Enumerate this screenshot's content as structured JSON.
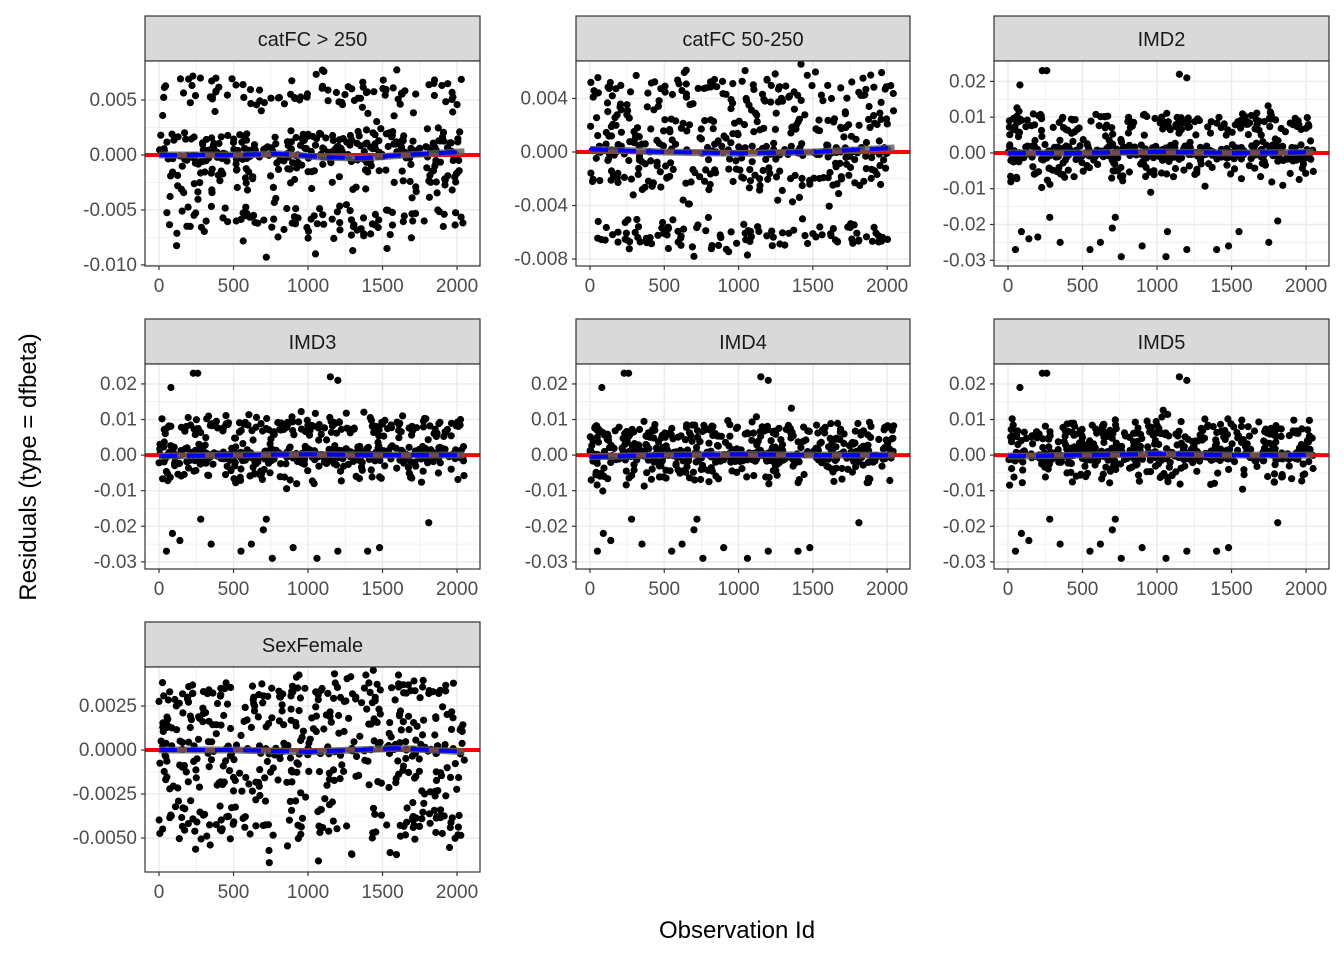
{
  "chart_data": {
    "type": "scatter",
    "xlabel": "Observation Id",
    "ylabel": "Residuals (type = dfbeta)",
    "xlim": [
      -94,
      2154
    ],
    "xticks": [
      0,
      500,
      1000,
      1500,
      2000
    ],
    "n_points_per_panel": 2050,
    "colors": {
      "points": "#000000",
      "reference_line": "#ff0000",
      "smooth_line": "#0000ff",
      "ribbon": "#595959",
      "strip": "#d9d9d9",
      "grid": "#ebebeb"
    },
    "panels": [
      {
        "title": "catFC > 250",
        "ylim": [
          -0.0101,
          0.00855
        ],
        "yticks": [
          0.005,
          0.0,
          -0.005,
          -0.01
        ],
        "ytick_labels": [
          "0.005",
          "0.000",
          "-0.005",
          "-0.010"
        ],
        "bands": [
          [
            0.0055,
            0.0012,
            0.2
          ],
          [
            0.0012,
            0.0007,
            0.22
          ],
          [
            0.0,
            0.0005,
            0.22
          ],
          [
            -0.002,
            0.0012,
            0.16
          ],
          [
            -0.006,
            0.0011,
            0.2
          ]
        ],
        "outliers": [
          [
            720,
            -0.0093
          ],
          [
            1050,
            -0.009
          ],
          [
            1530,
            -0.0085
          ],
          [
            1300,
            -0.0087
          ]
        ],
        "smooth": [
          [
            0,
            0.0
          ],
          [
            500,
            0.0
          ],
          [
            800,
            0.0001
          ],
          [
            1100,
            -0.0002
          ],
          [
            1350,
            -0.0003
          ],
          [
            1650,
            0.0
          ],
          [
            2050,
            0.0003
          ]
        ]
      },
      {
        "title": "catFC 50-250",
        "ylim": [
          -0.00852,
          0.0068
        ],
        "yticks": [
          0.004,
          0.0,
          -0.004,
          -0.008
        ],
        "ytick_labels": [
          "0.004",
          "0.000",
          "-0.004",
          "-0.008"
        ],
        "bands": [
          [
            0.0045,
            0.0011,
            0.22
          ],
          [
            0.0018,
            0.0008,
            0.2
          ],
          [
            0.0,
            0.0005,
            0.22
          ],
          [
            -0.002,
            0.0009,
            0.18
          ],
          [
            -0.0062,
            0.0007,
            0.18
          ]
        ],
        "outliers": [
          [
            700,
            -0.0078
          ],
          [
            1060,
            -0.0077
          ]
        ],
        "smooth": [
          [
            0,
            0.0002
          ],
          [
            500,
            0.0
          ],
          [
            1000,
            -0.0001
          ],
          [
            1500,
            0.0
          ],
          [
            2050,
            0.0003
          ]
        ]
      },
      {
        "title": "IMD2",
        "ylim": [
          -0.0316,
          0.0257
        ],
        "yticks": [
          0.02,
          0.01,
          0.0,
          -0.01,
          -0.02,
          -0.03
        ],
        "ytick_labels": [
          "0.02",
          "0.01",
          "0.00",
          "-0.01",
          "-0.02",
          "-0.03"
        ],
        "bands": [
          [
            0.008,
            0.0025,
            0.32
          ],
          [
            0.0,
            0.0018,
            0.56
          ],
          [
            -0.006,
            0.0025,
            0.12
          ]
        ],
        "outliers": [
          [
            50,
            -0.027
          ],
          [
            90,
            -0.022
          ],
          [
            140,
            -0.024
          ],
          [
            200,
            -0.0235
          ],
          [
            280,
            -0.018
          ],
          [
            350,
            -0.025
          ],
          [
            550,
            -0.027
          ],
          [
            620,
            -0.025
          ],
          [
            700,
            -0.021
          ],
          [
            720,
            -0.018
          ],
          [
            760,
            -0.029
          ],
          [
            900,
            -0.026
          ],
          [
            1060,
            -0.029
          ],
          [
            1070,
            -0.022
          ],
          [
            1200,
            -0.027
          ],
          [
            1400,
            -0.027
          ],
          [
            1480,
            -0.026
          ],
          [
            1550,
            -0.022
          ],
          [
            1750,
            -0.025
          ],
          [
            1810,
            -0.019
          ],
          [
            230,
            0.023
          ],
          [
            260,
            0.023
          ],
          [
            1150,
            0.022
          ],
          [
            1200,
            0.021
          ],
          [
            80,
            0.019
          ]
        ],
        "smooth": [
          [
            0,
            0.0
          ],
          [
            500,
            0.0
          ],
          [
            1000,
            0.0003
          ],
          [
            1500,
            0.0
          ],
          [
            2050,
            0.0002
          ]
        ]
      },
      {
        "title": "IMD3",
        "ylim": [
          -0.032,
          0.0256
        ],
        "yticks": [
          0.02,
          0.01,
          0.0,
          -0.01,
          -0.02,
          -0.03
        ],
        "ytick_labels": [
          "0.02",
          "0.01",
          "0.00",
          "-0.01",
          "-0.02",
          "-0.03"
        ],
        "bands": [
          [
            0.008,
            0.0025,
            0.32
          ],
          [
            0.0,
            0.0018,
            0.56
          ],
          [
            -0.005,
            0.0025,
            0.12
          ]
        ],
        "outliers": [
          [
            50,
            -0.027
          ],
          [
            90,
            -0.022
          ],
          [
            140,
            -0.024
          ],
          [
            280,
            -0.018
          ],
          [
            350,
            -0.025
          ],
          [
            550,
            -0.027
          ],
          [
            620,
            -0.025
          ],
          [
            700,
            -0.021
          ],
          [
            720,
            -0.018
          ],
          [
            760,
            -0.029
          ],
          [
            900,
            -0.026
          ],
          [
            1060,
            -0.029
          ],
          [
            1200,
            -0.027
          ],
          [
            1400,
            -0.027
          ],
          [
            1480,
            -0.026
          ],
          [
            1810,
            -0.019
          ],
          [
            230,
            0.023
          ],
          [
            260,
            0.023
          ],
          [
            1150,
            0.022
          ],
          [
            1200,
            0.021
          ],
          [
            80,
            0.019
          ]
        ],
        "smooth": [
          [
            0,
            -0.0003
          ],
          [
            500,
            0.0
          ],
          [
            1000,
            0.0002
          ],
          [
            1500,
            0.0
          ],
          [
            2050,
            0.0
          ]
        ]
      },
      {
        "title": "IMD4",
        "ylim": [
          -0.032,
          0.0256
        ],
        "yticks": [
          0.02,
          0.01,
          0.0,
          -0.01,
          -0.02,
          -0.03
        ],
        "ytick_labels": [
          "0.02",
          "0.01",
          "0.00",
          "-0.01",
          "-0.02",
          "-0.03"
        ],
        "bands": [
          [
            0.006,
            0.0025,
            0.35
          ],
          [
            0.0,
            0.0018,
            0.53
          ],
          [
            -0.005,
            0.0025,
            0.12
          ]
        ],
        "outliers": [
          [
            50,
            -0.027
          ],
          [
            90,
            -0.022
          ],
          [
            140,
            -0.024
          ],
          [
            280,
            -0.018
          ],
          [
            350,
            -0.025
          ],
          [
            550,
            -0.027
          ],
          [
            620,
            -0.025
          ],
          [
            700,
            -0.021
          ],
          [
            720,
            -0.018
          ],
          [
            760,
            -0.029
          ],
          [
            900,
            -0.026
          ],
          [
            1060,
            -0.029
          ],
          [
            1200,
            -0.027
          ],
          [
            1400,
            -0.027
          ],
          [
            1480,
            -0.026
          ],
          [
            1810,
            -0.019
          ],
          [
            230,
            0.023
          ],
          [
            260,
            0.023
          ],
          [
            1150,
            0.022
          ],
          [
            1200,
            0.021
          ],
          [
            80,
            0.019
          ]
        ],
        "smooth": [
          [
            0,
            -0.0005
          ],
          [
            500,
            0.0
          ],
          [
            1000,
            0.0002
          ],
          [
            1500,
            0.0
          ],
          [
            2050,
            0.0
          ]
        ]
      },
      {
        "title": "IMD5",
        "ylim": [
          -0.032,
          0.0256
        ],
        "yticks": [
          0.02,
          0.01,
          0.0,
          -0.01,
          -0.02,
          -0.03
        ],
        "ytick_labels": [
          "0.02",
          "0.01",
          "0.00",
          "-0.01",
          "-0.02",
          "-0.03"
        ],
        "bands": [
          [
            0.006,
            0.0025,
            0.35
          ],
          [
            0.0,
            0.0018,
            0.53
          ],
          [
            -0.005,
            0.0025,
            0.12
          ]
        ],
        "outliers": [
          [
            50,
            -0.027
          ],
          [
            90,
            -0.022
          ],
          [
            140,
            -0.024
          ],
          [
            280,
            -0.018
          ],
          [
            350,
            -0.025
          ],
          [
            550,
            -0.027
          ],
          [
            620,
            -0.025
          ],
          [
            700,
            -0.021
          ],
          [
            720,
            -0.018
          ],
          [
            760,
            -0.029
          ],
          [
            900,
            -0.026
          ],
          [
            1060,
            -0.029
          ],
          [
            1200,
            -0.027
          ],
          [
            1400,
            -0.027
          ],
          [
            1480,
            -0.026
          ],
          [
            1810,
            -0.019
          ],
          [
            230,
            0.023
          ],
          [
            260,
            0.023
          ],
          [
            1150,
            0.022
          ],
          [
            1200,
            0.021
          ],
          [
            80,
            0.019
          ]
        ],
        "smooth": [
          [
            0,
            -0.0003
          ],
          [
            500,
            0.0
          ],
          [
            1000,
            0.0003
          ],
          [
            1500,
            0.0
          ],
          [
            2050,
            0.0
          ]
        ]
      },
      {
        "title": "SexFemale",
        "ylim": [
          -0.00693,
          0.00472
        ],
        "yticks": [
          0.0025,
          0.0,
          -0.0025,
          -0.005
        ],
        "ytick_labels": [
          "0.0025",
          "0.0000",
          "-0.0025",
          "-0.0050"
        ],
        "bands": [
          [
            0.0032,
            0.0006,
            0.2
          ],
          [
            0.0015,
            0.0007,
            0.2
          ],
          [
            0.0,
            0.0004,
            0.15
          ],
          [
            -0.0015,
            0.0008,
            0.2
          ],
          [
            -0.0042,
            0.0009,
            0.25
          ]
        ],
        "outliers": [
          [
            740,
            -0.0064
          ],
          [
            1070,
            -0.0063
          ]
        ],
        "smooth": [
          [
            0,
            0.0
          ],
          [
            500,
            0.0
          ],
          [
            1000,
            -0.0001
          ],
          [
            1600,
            0.0001
          ],
          [
            2050,
            -0.0001
          ]
        ]
      }
    ]
  }
}
